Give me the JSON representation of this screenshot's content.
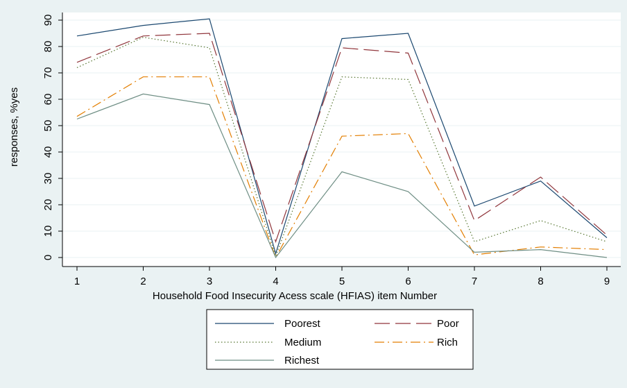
{
  "chart_data": {
    "type": "line",
    "title": "",
    "xlabel": "Household Food Insecurity Acess scale (HFIAS) item Number",
    "ylabel": "responses, %yes",
    "x": [
      1,
      2,
      3,
      4,
      5,
      6,
      7,
      8,
      9
    ],
    "xticks": [
      "1",
      "2",
      "3",
      "4",
      "5",
      "6",
      "7",
      "8",
      "9"
    ],
    "yticks": [
      "0",
      "10",
      "20",
      "30",
      "40",
      "50",
      "60",
      "70",
      "80",
      "90"
    ],
    "ylim": [
      0,
      90
    ],
    "xlim": [
      1,
      9
    ],
    "grid": true,
    "legend_position": "bottom",
    "series": [
      {
        "name": "Poorest",
        "color": "#1a476f",
        "dash": "solid",
        "values": [
          84,
          88,
          90.5,
          1.5,
          83,
          85,
          19.5,
          29,
          7.5
        ]
      },
      {
        "name": "Poor",
        "color": "#90353b",
        "dash": "longdash",
        "values": [
          74,
          84,
          85,
          6,
          79.5,
          77.5,
          14,
          30.5,
          8.5
        ]
      },
      {
        "name": "Medium",
        "color": "#55752f",
        "dash": "dot",
        "values": [
          72,
          83.5,
          79.5,
          0.5,
          68.5,
          67.5,
          6,
          14,
          6
        ]
      },
      {
        "name": "Rich",
        "color": "#e37e00",
        "dash": "dashdot",
        "values": [
          53.5,
          68.5,
          68.5,
          0,
          46,
          47,
          1,
          4,
          3
        ]
      },
      {
        "name": "Richest",
        "color": "#6e8e84",
        "dash": "solid",
        "values": [
          52.5,
          62,
          58,
          0,
          32.5,
          25,
          2,
          3,
          0
        ]
      }
    ]
  }
}
